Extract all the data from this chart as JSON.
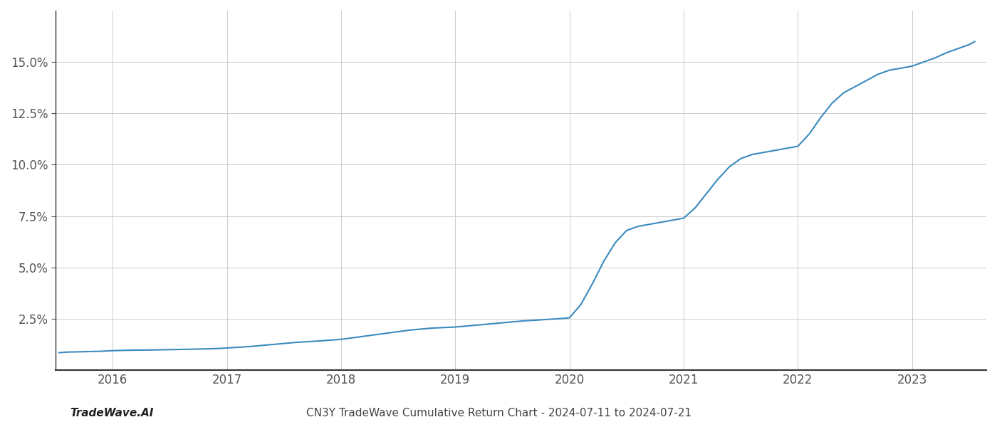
{
  "title": "CN3Y TradeWave Cumulative Return Chart - 2024-07-11 to 2024-07-21",
  "watermark": "TradeWave.AI",
  "line_color": "#3a8abf",
  "background_color": "#ffffff",
  "grid_color": "#cccccc",
  "x_values": [
    2015.53,
    2015.6,
    2015.75,
    2015.9,
    2016.0,
    2016.15,
    2016.3,
    2016.5,
    2016.7,
    2016.9,
    2017.0,
    2017.2,
    2017.4,
    2017.6,
    2017.8,
    2018.0,
    2018.2,
    2018.4,
    2018.6,
    2018.8,
    2019.0,
    2019.1,
    2019.2,
    2019.3,
    2019.4,
    2019.5,
    2019.6,
    2019.7,
    2019.8,
    2019.9,
    2020.0,
    2020.1,
    2020.2,
    2020.3,
    2020.4,
    2020.5,
    2020.6,
    2020.7,
    2020.8,
    2020.9,
    2021.0,
    2021.1,
    2021.2,
    2021.3,
    2021.4,
    2021.5,
    2021.6,
    2021.7,
    2021.8,
    2021.9,
    2022.0,
    2022.1,
    2022.2,
    2022.3,
    2022.4,
    2022.5,
    2022.6,
    2022.7,
    2022.8,
    2022.9,
    2023.0,
    2023.1,
    2023.2,
    2023.3,
    2023.4,
    2023.5,
    2023.55
  ],
  "y_values": [
    0.85,
    0.88,
    0.9,
    0.92,
    0.95,
    0.97,
    0.98,
    1.0,
    1.02,
    1.05,
    1.08,
    1.15,
    1.25,
    1.35,
    1.42,
    1.5,
    1.65,
    1.8,
    1.95,
    2.05,
    2.1,
    2.15,
    2.2,
    2.25,
    2.3,
    2.35,
    2.4,
    2.43,
    2.47,
    2.5,
    2.55,
    3.2,
    4.2,
    5.3,
    6.2,
    6.8,
    7.0,
    7.1,
    7.2,
    7.3,
    7.4,
    7.9,
    8.6,
    9.3,
    9.9,
    10.3,
    10.5,
    10.6,
    10.7,
    10.8,
    10.9,
    11.5,
    12.3,
    13.0,
    13.5,
    13.8,
    14.1,
    14.4,
    14.6,
    14.7,
    14.8,
    15.0,
    15.2,
    15.45,
    15.65,
    15.85,
    16.0
  ],
  "xlim": [
    2015.5,
    2023.65
  ],
  "ylim": [
    0.0,
    17.5
  ],
  "yticks": [
    2.5,
    5.0,
    7.5,
    10.0,
    12.5,
    15.0
  ],
  "xticks": [
    2016,
    2017,
    2018,
    2019,
    2020,
    2021,
    2022,
    2023
  ],
  "line_width": 1.5,
  "title_fontsize": 11,
  "watermark_fontsize": 11,
  "tick_fontsize": 12,
  "spine_color": "#333333"
}
